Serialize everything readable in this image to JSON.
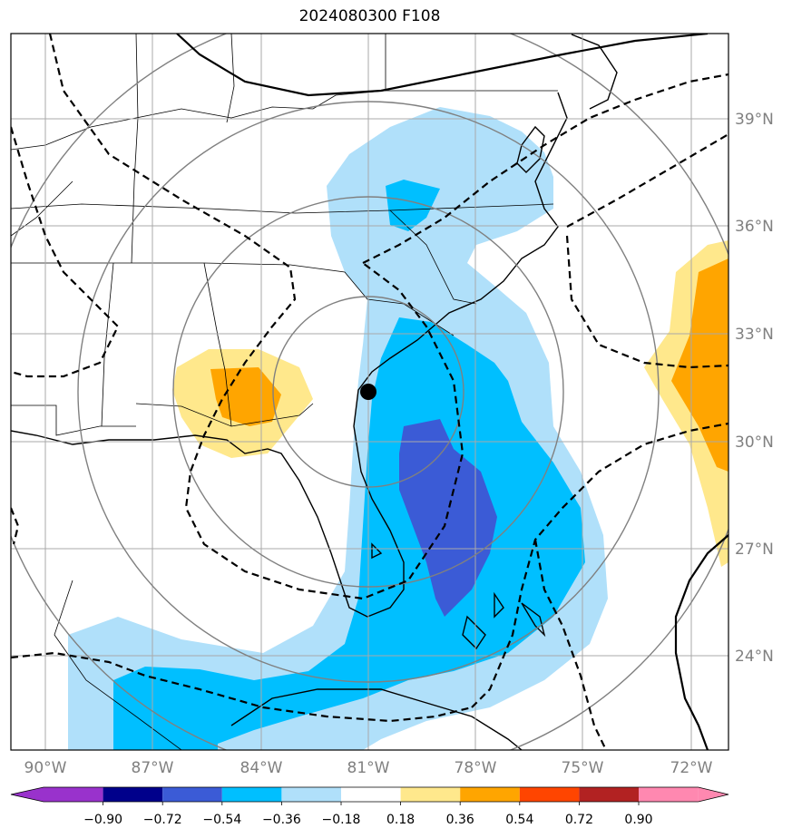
{
  "title": "2024080300 F108",
  "colors": {
    "neg_090": "#9932CC",
    "neg_072": "#00008B",
    "neg_054": "#3B5BD6",
    "neg_036": "#00BFFF",
    "neg_018": "#B0E0FA",
    "zero": "#FFFFFF",
    "pos_018": "#FFE88C",
    "pos_036": "#FFA500",
    "pos_054": "#FF4500",
    "pos_072": "#B22222",
    "pos_090": "#FF88B0",
    "grid": "#A9A9A9",
    "range_rings": "#808080"
  },
  "lon_labels": [
    "90°W",
    "87°W",
    "84°W",
    "81°W",
    "78°W",
    "75°W",
    "72°W"
  ],
  "lat_labels": [
    "39°N",
    "36°N",
    "33°N",
    "30°N",
    "27°N",
    "24°N"
  ],
  "colorbar": {
    "ticks": [
      "−0.90",
      "−0.72",
      "−0.54",
      "−0.36",
      "−0.18",
      "0.18",
      "0.36",
      "0.54",
      "0.72",
      "0.90"
    ]
  },
  "center_marker": {
    "lon": -81.0,
    "lat": 31.3
  }
}
